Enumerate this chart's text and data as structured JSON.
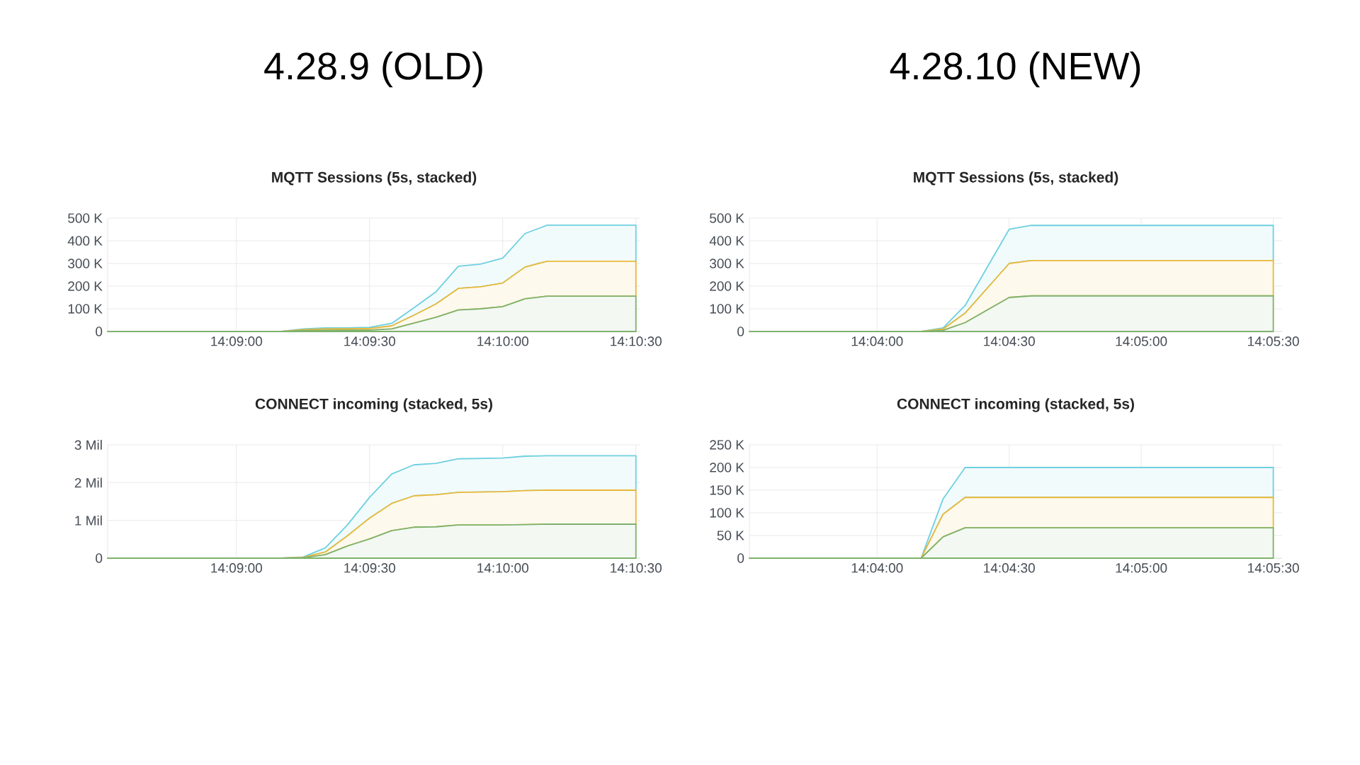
{
  "chart_data": [
    {
      "type": "area",
      "stacked": true,
      "grid": true,
      "title": "4.28.9 (OLD)",
      "subtitle": "MQTT Sessions (5s, stacked)",
      "x": [
        14.141944,
        14.152778,
        14.154167,
        14.155556,
        14.156944,
        14.158333,
        14.159722,
        14.161111,
        14.1625,
        14.163889,
        14.165278,
        14.166667,
        14.168056,
        14.169444,
        14.175
      ],
      "series": [
        {
          "color": "#7eb26d",
          "values": [
            0,
            0,
            4000,
            5000,
            6000,
            6000,
            11000,
            37000,
            63000,
            95000,
            100000,
            110000,
            144000,
            156000,
            156000
          ]
        },
        {
          "color": "#eab839",
          "values": [
            0,
            0,
            4000,
            6000,
            6000,
            7000,
            14000,
            35000,
            59000,
            95000,
            97000,
            104000,
            140000,
            154000,
            154000
          ]
        },
        {
          "color": "#6ed0e0",
          "values": [
            0,
            0,
            3000,
            5000,
            4000,
            5000,
            11000,
            33000,
            54000,
            98000,
            100000,
            110000,
            148000,
            159000,
            159000
          ]
        }
      ],
      "xlim": [
        14.141944,
        14.175278
      ],
      "xticks": [
        {
          "value": 14.15,
          "label": "14:09:00"
        },
        {
          "value": 14.158333,
          "label": "14:09:30"
        },
        {
          "value": 14.166667,
          "label": "14:10:00"
        },
        {
          "value": 14.175,
          "label": "14:10:30"
        }
      ],
      "ylim": [
        0,
        500000
      ],
      "yticks": [
        0,
        {
          "value": 100000,
          "label": "100 K"
        },
        {
          "value": 200000,
          "label": "200 K"
        },
        {
          "value": 300000,
          "label": "300 K"
        },
        {
          "value": 400000,
          "label": "400 K"
        },
        {
          "value": 500000,
          "label": "500 K"
        }
      ]
    },
    {
      "type": "area",
      "stacked": true,
      "grid": true,
      "title": "4.28.10 (NEW)",
      "subtitle": "MQTT Sessions (5s, stacked)",
      "x": [
        14.058611,
        14.069444,
        14.070833,
        14.072222,
        14.075,
        14.076389,
        14.091667
      ],
      "series": [
        {
          "color": "#7eb26d",
          "values": [
            0,
            0,
            5000,
            39000,
            150000,
            157000,
            157000
          ]
        },
        {
          "color": "#eab839",
          "values": [
            0,
            0,
            6000,
            42000,
            150000,
            156000,
            156000
          ]
        },
        {
          "color": "#6ed0e0",
          "values": [
            0,
            0,
            5000,
            34000,
            151000,
            155000,
            155000
          ]
        }
      ],
      "xlim": [
        14.058611,
        14.092222
      ],
      "xticks": [
        {
          "value": 14.066667,
          "label": "14:04:00"
        },
        {
          "value": 14.075,
          "label": "14:04:30"
        },
        {
          "value": 14.083333,
          "label": "14:05:00"
        },
        {
          "value": 14.091667,
          "label": "14:05:30"
        }
      ],
      "ylim": [
        0,
        500000
      ],
      "yticks": [
        0,
        {
          "value": 100000,
          "label": "100 K"
        },
        {
          "value": 200000,
          "label": "200 K"
        },
        {
          "value": 300000,
          "label": "300 K"
        },
        {
          "value": 400000,
          "label": "400 K"
        },
        {
          "value": 500000,
          "label": "500 K"
        }
      ]
    },
    {
      "type": "area",
      "stacked": true,
      "grid": true,
      "title": "CONNECT incoming (stacked, 5s)",
      "x": [
        14.141944,
        14.152778,
        14.154167,
        14.155556,
        14.156944,
        14.158333,
        14.159722,
        14.161111,
        14.1625,
        14.163889,
        14.165278,
        14.166667,
        14.168056,
        14.169444,
        14.175
      ],
      "series": [
        {
          "color": "#7eb26d",
          "values": [
            0,
            0,
            0.01,
            0.09,
            0.32,
            0.51,
            0.73,
            0.82,
            0.83,
            0.88,
            0.88,
            0.88,
            0.89,
            0.9,
            0.9
          ]
        },
        {
          "color": "#eab839",
          "values": [
            0,
            0,
            0.01,
            0.07,
            0.27,
            0.55,
            0.72,
            0.83,
            0.85,
            0.86,
            0.87,
            0.88,
            0.9,
            0.9,
            0.9
          ]
        },
        {
          "color": "#6ed0e0",
          "values": [
            0,
            0,
            0.01,
            0.11,
            0.29,
            0.55,
            0.78,
            0.82,
            0.83,
            0.89,
            0.89,
            0.89,
            0.91,
            0.91,
            0.91
          ]
        }
      ],
      "xlim": [
        14.141944,
        14.175278
      ],
      "xticks": [
        {
          "value": 14.15,
          "label": "14:09:00"
        },
        {
          "value": 14.158333,
          "label": "14:09:30"
        },
        {
          "value": 14.166667,
          "label": "14:10:00"
        },
        {
          "value": 14.175,
          "label": "14:10:30"
        }
      ],
      "ylim": [
        0,
        3
      ],
      "yticks": [
        0,
        {
          "value": 1,
          "label": "1 Mil"
        },
        {
          "value": 2,
          "label": "2 Mil"
        },
        {
          "value": 3,
          "label": "3 Mil"
        }
      ]
    },
    {
      "type": "area",
      "stacked": true,
      "grid": true,
      "title": "CONNECT incoming (stacked, 5s)",
      "x": [
        14.058611,
        14.069444,
        14.070833,
        14.072222,
        14.091667
      ],
      "series": [
        {
          "color": "#7eb26d",
          "values": [
            0,
            0,
            47000,
            67000,
            67000
          ]
        },
        {
          "color": "#eab839",
          "values": [
            0,
            0,
            50000,
            67000,
            67000
          ]
        },
        {
          "color": "#6ed0e0",
          "values": [
            0,
            0,
            34000,
            66000,
            66000
          ]
        }
      ],
      "xlim": [
        14.058611,
        14.092222
      ],
      "xticks": [
        {
          "value": 14.066667,
          "label": "14:04:00"
        },
        {
          "value": 14.075,
          "label": "14:04:30"
        },
        {
          "value": 14.083333,
          "label": "14:05:00"
        },
        {
          "value": 14.091667,
          "label": "14:05:30"
        }
      ],
      "ylim": [
        0,
        250000
      ],
      "yticks": [
        0,
        {
          "value": 50000,
          "label": "50 K"
        },
        {
          "value": 100000,
          "label": "100 K"
        },
        {
          "value": 150000,
          "label": "150 K"
        },
        {
          "value": 200000,
          "label": "200 K"
        },
        {
          "value": 250000,
          "label": "250 K"
        }
      ]
    }
  ]
}
